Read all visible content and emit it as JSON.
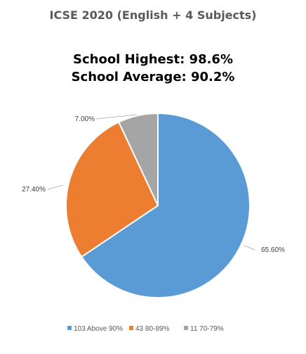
{
  "chart_data": {
    "type": "pie",
    "title": "ICSE 2020 (English + 4 Subjects)",
    "annotations": [
      "School Highest: 98.6%",
      "School Average: 90.2%"
    ],
    "categories": [
      "103 Above 90%",
      "43 80-89%",
      "11 70-79%"
    ],
    "values": [
      65.6,
      27.4,
      7.0
    ],
    "data_labels": [
      "65.60%",
      "27.40%",
      "7.00%"
    ],
    "colors": [
      "#5b9bd5",
      "#ed7d31",
      "#a5a5a5"
    ],
    "legend_position": "bottom",
    "start_angle": "12 o'clock, clockwise"
  }
}
